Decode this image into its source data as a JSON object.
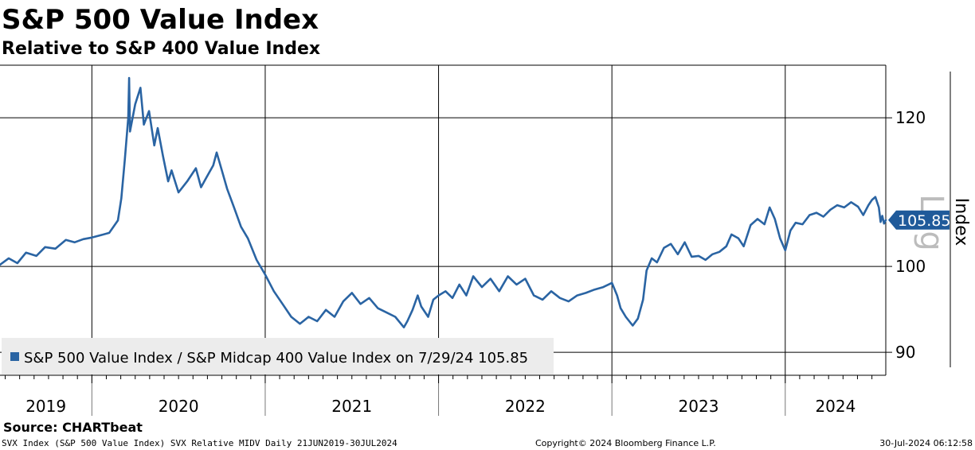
{
  "header": {
    "title": "S&P 500 Value Index",
    "subtitle": "Relative to S&P 400 Value Index"
  },
  "chart_data": {
    "type": "line",
    "title": "S&P 500 Value Index",
    "subtitle": "Relative to S&P 400 Value Index",
    "ylabel": "Index",
    "scale": "Log",
    "ylim": [
      87.5,
      128
    ],
    "y_ticks": [
      90,
      100,
      120
    ],
    "y_tick_labels": [
      "90",
      "100",
      "120"
    ],
    "x_range": [
      2019.47,
      2024.58
    ],
    "year_labels": [
      "2019",
      "2020",
      "2021",
      "2022",
      "2023",
      "2024"
    ],
    "year_dividers": [
      2020,
      2021,
      2022,
      2023,
      2024
    ],
    "last_value": 105.85,
    "last_value_label": "105.85",
    "legend": {
      "text": "S&P 500 Value Index / S&P Midcap 400 Value Index on 7/29/24 105.85",
      "placement": "bottom-left"
    },
    "series": [
      {
        "name": "S&P 500 Value Index / S&P Midcap 400 Value Index",
        "color": "#2a64a3",
        "points": [
          [
            2019.47,
            100.2
          ],
          [
            2019.52,
            101.0
          ],
          [
            2019.57,
            100.4
          ],
          [
            2019.62,
            101.7
          ],
          [
            2019.68,
            101.3
          ],
          [
            2019.73,
            102.4
          ],
          [
            2019.79,
            102.2
          ],
          [
            2019.85,
            103.3
          ],
          [
            2019.9,
            103.0
          ],
          [
            2019.95,
            103.4
          ],
          [
            2020.0,
            103.6
          ],
          [
            2020.05,
            103.9
          ],
          [
            2020.1,
            104.2
          ],
          [
            2020.15,
            105.8
          ],
          [
            2020.17,
            108.7
          ],
          [
            2020.19,
            114.0
          ],
          [
            2020.21,
            120.0
          ],
          [
            2020.215,
            126.0
          ],
          [
            2020.22,
            118.0
          ],
          [
            2020.25,
            122.0
          ],
          [
            2020.28,
            124.5
          ],
          [
            2020.3,
            119.0
          ],
          [
            2020.33,
            121.0
          ],
          [
            2020.36,
            116.0
          ],
          [
            2020.38,
            118.5
          ],
          [
            2020.41,
            114.5
          ],
          [
            2020.44,
            111.0
          ],
          [
            2020.46,
            112.5
          ],
          [
            2020.5,
            109.5
          ],
          [
            2020.55,
            111.0
          ],
          [
            2020.6,
            112.8
          ],
          [
            2020.63,
            110.2
          ],
          [
            2020.66,
            111.5
          ],
          [
            2020.7,
            113.2
          ],
          [
            2020.72,
            115.0
          ],
          [
            2020.75,
            112.5
          ],
          [
            2020.78,
            110.0
          ],
          [
            2020.82,
            107.5
          ],
          [
            2020.86,
            105.0
          ],
          [
            2020.9,
            103.5
          ],
          [
            2020.95,
            100.8
          ],
          [
            2021.0,
            99.0
          ],
          [
            2021.05,
            97.0
          ],
          [
            2021.1,
            95.5
          ],
          [
            2021.15,
            94.0
          ],
          [
            2021.2,
            93.2
          ],
          [
            2021.25,
            94.0
          ],
          [
            2021.3,
            93.5
          ],
          [
            2021.35,
            94.8
          ],
          [
            2021.4,
            94.0
          ],
          [
            2021.45,
            95.8
          ],
          [
            2021.5,
            96.8
          ],
          [
            2021.55,
            95.5
          ],
          [
            2021.6,
            96.2
          ],
          [
            2021.65,
            95.0
          ],
          [
            2021.7,
            94.5
          ],
          [
            2021.75,
            94.0
          ],
          [
            2021.8,
            92.8
          ],
          [
            2021.82,
            93.5
          ],
          [
            2021.85,
            94.8
          ],
          [
            2021.88,
            96.5
          ],
          [
            2021.9,
            95.2
          ],
          [
            2021.94,
            94.0
          ],
          [
            2021.97,
            96.0
          ],
          [
            2022.0,
            96.5
          ],
          [
            2022.04,
            97.0
          ],
          [
            2022.08,
            96.2
          ],
          [
            2022.12,
            97.8
          ],
          [
            2022.16,
            96.5
          ],
          [
            2022.2,
            98.8
          ],
          [
            2022.25,
            97.5
          ],
          [
            2022.3,
            98.5
          ],
          [
            2022.35,
            97.0
          ],
          [
            2022.4,
            98.8
          ],
          [
            2022.45,
            97.8
          ],
          [
            2022.5,
            98.5
          ],
          [
            2022.55,
            96.5
          ],
          [
            2022.6,
            96.0
          ],
          [
            2022.65,
            97.0
          ],
          [
            2022.7,
            96.2
          ],
          [
            2022.75,
            95.8
          ],
          [
            2022.8,
            96.5
          ],
          [
            2022.85,
            96.8
          ],
          [
            2022.9,
            97.2
          ],
          [
            2022.95,
            97.5
          ],
          [
            2023.0,
            98.0
          ],
          [
            2023.03,
            96.5
          ],
          [
            2023.05,
            95.0
          ],
          [
            2023.08,
            94.0
          ],
          [
            2023.12,
            93.0
          ],
          [
            2023.15,
            93.8
          ],
          [
            2023.18,
            96.0
          ],
          [
            2023.2,
            99.5
          ],
          [
            2023.23,
            101.0
          ],
          [
            2023.26,
            100.5
          ],
          [
            2023.3,
            102.3
          ],
          [
            2023.34,
            102.8
          ],
          [
            2023.38,
            101.5
          ],
          [
            2023.42,
            103.0
          ],
          [
            2023.46,
            101.2
          ],
          [
            2023.5,
            101.3
          ],
          [
            2023.54,
            100.8
          ],
          [
            2023.58,
            101.5
          ],
          [
            2023.62,
            101.8
          ],
          [
            2023.66,
            102.5
          ],
          [
            2023.69,
            104.0
          ],
          [
            2023.73,
            103.5
          ],
          [
            2023.76,
            102.5
          ],
          [
            2023.8,
            105.2
          ],
          [
            2023.84,
            106.0
          ],
          [
            2023.88,
            105.3
          ],
          [
            2023.91,
            107.5
          ],
          [
            2023.94,
            106.0
          ],
          [
            2023.97,
            103.5
          ],
          [
            2024.0,
            102.0
          ],
          [
            2024.03,
            104.5
          ],
          [
            2024.06,
            105.5
          ],
          [
            2024.1,
            105.3
          ],
          [
            2024.14,
            106.5
          ],
          [
            2024.18,
            106.8
          ],
          [
            2024.22,
            106.3
          ],
          [
            2024.26,
            107.2
          ],
          [
            2024.3,
            107.8
          ],
          [
            2024.34,
            107.5
          ],
          [
            2024.38,
            108.2
          ],
          [
            2024.42,
            107.6
          ],
          [
            2024.45,
            106.5
          ],
          [
            2024.48,
            107.8
          ],
          [
            2024.5,
            108.5
          ],
          [
            2024.52,
            108.9
          ],
          [
            2024.54,
            107.5
          ],
          [
            2024.55,
            105.6
          ],
          [
            2024.56,
            106.4
          ],
          [
            2024.57,
            105.4
          ],
          [
            2024.58,
            105.85
          ]
        ]
      }
    ]
  },
  "footer": {
    "source": "Source: CHARTbeat",
    "meta": "SVX Index (S&P 500 Value Index) SVX Relative MIDV  Daily 21JUN2019-30JUL2024",
    "copyright": "Copyright© 2024 Bloomberg Finance L.P.",
    "timestamp": "30-Jul-2024 06:12:58"
  },
  "colors": {
    "series": "#2a64a3",
    "value_badge": "#1f5a9a",
    "grid": "#000000",
    "legend_bg": "#ececec",
    "axis_watermark": "#bcbcbc"
  }
}
